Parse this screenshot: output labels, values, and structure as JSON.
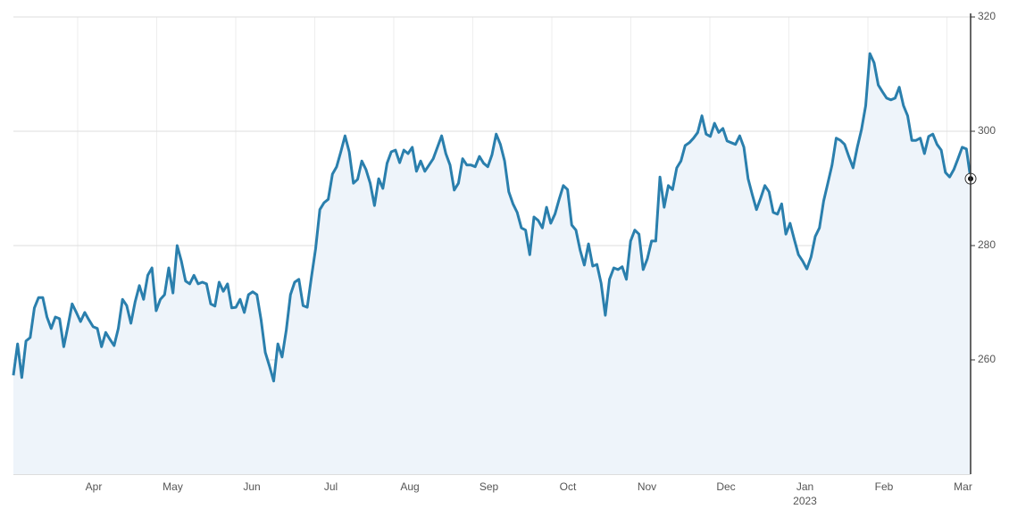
{
  "chart_data": {
    "type": "area",
    "series": [
      {
        "color": "#2a7fad",
        "fill": "#eef4fa",
        "values": [
          257.3,
          262.8,
          256.9,
          263.3,
          263.9,
          269.1,
          270.9,
          270.9,
          267.5,
          265.5,
          267.5,
          267.2,
          262.3,
          265.9,
          269.8,
          268.3,
          266.7,
          268.3,
          267.0,
          265.8,
          265.5,
          262.3,
          264.8,
          263.6,
          262.5,
          265.5,
          270.6,
          269.5,
          266.4,
          270.2,
          273.0,
          270.6,
          274.8,
          276.1,
          268.6,
          270.6,
          271.4,
          276.1,
          271.7,
          280.0,
          277.3,
          273.8,
          273.3,
          274.8,
          273.3,
          273.6,
          273.3,
          269.8,
          269.4,
          273.6,
          272.0,
          273.3,
          269.1,
          269.2,
          270.6,
          268.3,
          271.4,
          271.9,
          271.4,
          267.0,
          261.3,
          258.9,
          256.3,
          262.8,
          260.5,
          265.2,
          271.4,
          273.6,
          274.1,
          269.5,
          269.2,
          274.5,
          279.5,
          286.3,
          287.5,
          288.1,
          292.5,
          293.8,
          296.4,
          299.2,
          296.4,
          290.9,
          291.6,
          294.8,
          293.3,
          290.9,
          287.0,
          291.7,
          290.0,
          294.4,
          296.4,
          296.7,
          294.5,
          296.7,
          296.1,
          297.2,
          293.0,
          294.8,
          293.0,
          294.1,
          295.2,
          297.2,
          299.2,
          296.1,
          294.1,
          289.7,
          290.9,
          295.2,
          294.1,
          294.1,
          293.8,
          295.6,
          294.4,
          293.8,
          295.9,
          299.5,
          297.7,
          294.8,
          289.4,
          287.3,
          285.8,
          283.1,
          282.7,
          278.4,
          285.0,
          284.4,
          283.1,
          286.7,
          283.9,
          285.5,
          288.1,
          290.5,
          289.8,
          283.6,
          282.7,
          279.2,
          276.6,
          280.3,
          276.4,
          276.7,
          273.4,
          267.8,
          274.1,
          276.1,
          275.8,
          276.3,
          274.1,
          280.8,
          282.7,
          282.0,
          275.8,
          277.7,
          280.8,
          280.8,
          292.0,
          286.7,
          290.5,
          289.8,
          293.6,
          294.8,
          297.5,
          298.0,
          298.8,
          299.8,
          302.7,
          299.5,
          299.1,
          301.4,
          299.8,
          300.5,
          298.3,
          298.0,
          297.7,
          299.2,
          297.2,
          291.7,
          288.9,
          286.3,
          288.3,
          290.5,
          289.4,
          285.8,
          285.5,
          287.3,
          282.0,
          283.9,
          281.1,
          278.4,
          277.3,
          275.9,
          278.0,
          281.6,
          283.1,
          287.8,
          290.9,
          294.1,
          298.8,
          298.4,
          297.7,
          295.6,
          293.6,
          297.2,
          300.3,
          304.5,
          313.6,
          312.0,
          308.1,
          306.9,
          305.8,
          305.5,
          305.8,
          307.7,
          304.5,
          302.7,
          298.4,
          298.4,
          298.8,
          296.1,
          299.1,
          299.5,
          297.7,
          296.7,
          292.8,
          292.0,
          293.3,
          295.2,
          297.2,
          296.9,
          291.7
        ]
      }
    ],
    "x_labels": [
      "Apr",
      "May",
      "Jun",
      "Jul",
      "Aug",
      "Sep",
      "Oct",
      "Nov",
      "Dec",
      {
        "label": "Jan",
        "sublabel": "2023"
      },
      "Feb",
      "Mar"
    ],
    "ylim": [
      240,
      320
    ],
    "yticks": [
      260,
      280,
      300,
      320
    ],
    "grid": true,
    "y_axis_side": "right"
  }
}
